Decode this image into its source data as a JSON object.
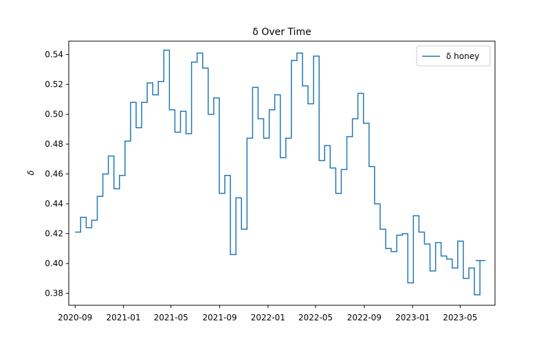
{
  "chart_data": {
    "type": "line",
    "title": "δ Over Time",
    "xlabel": "",
    "ylabel": "δ",
    "legend": {
      "placement": "top-right",
      "entries": [
        "δ honey"
      ]
    },
    "grid": false,
    "xlim": [
      "2020-08-16",
      "2023-07-28"
    ],
    "ylim": [
      0.372,
      0.549
    ],
    "x_ticks": [
      "2020-09",
      "2021-01",
      "2021-05",
      "2021-09",
      "2022-01",
      "2022-05",
      "2022-09",
      "2023-01",
      "2023-05"
    ],
    "y_ticks": [
      "0.38",
      "0.40",
      "0.42",
      "0.44",
      "0.46",
      "0.48",
      "0.50",
      "0.52",
      "0.54"
    ],
    "colors": {
      "series": "#1f77b4"
    },
    "series": [
      {
        "name": "δ honey",
        "step": "post",
        "x": [
          "2020-09-01",
          "2020-09-15",
          "2020-09-29",
          "2020-10-13",
          "2020-10-27",
          "2020-11-10",
          "2020-11-24",
          "2020-12-08",
          "2020-12-22",
          "2021-01-05",
          "2021-01-19",
          "2021-02-02",
          "2021-02-16",
          "2021-03-02",
          "2021-03-16",
          "2021-03-30",
          "2021-04-13",
          "2021-04-27",
          "2021-05-11",
          "2021-05-25",
          "2021-06-08",
          "2021-06-22",
          "2021-07-06",
          "2021-07-20",
          "2021-08-03",
          "2021-08-17",
          "2021-08-31",
          "2021-09-14",
          "2021-09-28",
          "2021-10-12",
          "2021-10-26",
          "2021-11-09",
          "2021-11-23",
          "2021-12-07",
          "2021-12-21",
          "2022-01-04",
          "2022-01-18",
          "2022-02-01",
          "2022-02-15",
          "2022-03-01",
          "2022-03-15",
          "2022-03-29",
          "2022-04-12",
          "2022-04-26",
          "2022-05-10",
          "2022-05-24",
          "2022-06-07",
          "2022-06-21",
          "2022-07-05",
          "2022-07-19",
          "2022-08-02",
          "2022-08-16",
          "2022-08-30",
          "2022-09-13",
          "2022-09-27",
          "2022-10-11",
          "2022-10-25",
          "2022-11-08",
          "2022-11-22",
          "2022-12-06",
          "2022-12-20",
          "2023-01-03",
          "2023-01-17",
          "2023-01-31",
          "2023-02-14",
          "2023-02-28",
          "2023-03-14",
          "2023-03-28",
          "2023-04-11",
          "2023-04-25",
          "2023-05-09",
          "2023-05-23",
          "2023-06-06",
          "2023-06-20",
          "2023-07-04"
        ],
        "values": [
          0.421,
          0.431,
          0.424,
          0.429,
          0.445,
          0.46,
          0.472,
          0.45,
          0.459,
          0.482,
          0.508,
          0.491,
          0.508,
          0.521,
          0.513,
          0.522,
          0.543,
          0.503,
          0.488,
          0.502,
          0.487,
          0.535,
          0.541,
          0.531,
          0.5,
          0.511,
          0.447,
          0.459,
          0.406,
          0.444,
          0.423,
          0.484,
          0.518,
          0.497,
          0.484,
          0.503,
          0.513,
          0.471,
          0.484,
          0.536,
          0.541,
          0.519,
          0.507,
          0.539,
          0.469,
          0.479,
          0.464,
          0.447,
          0.463,
          0.485,
          0.497,
          0.514,
          0.494,
          0.465,
          0.44,
          0.423,
          0.41,
          0.408,
          0.419,
          0.42,
          0.387,
          0.432,
          0.421,
          0.413,
          0.395,
          0.414,
          0.405,
          0.403,
          0.397,
          0.415,
          0.39,
          0.397,
          0.379,
          0.402,
          0.402
        ]
      }
    ]
  }
}
